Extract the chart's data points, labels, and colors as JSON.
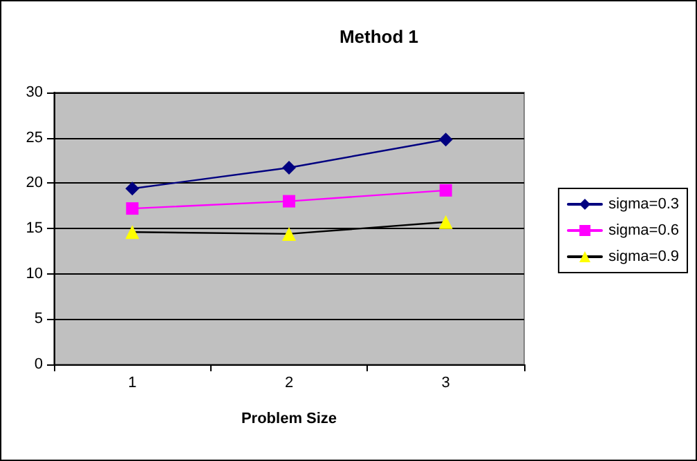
{
  "chart_data": {
    "type": "line",
    "title": "Method 1",
    "xlabel": "Problem Size",
    "categories": [
      "1",
      "2",
      "3"
    ],
    "series": [
      {
        "name": "sigma=0.3",
        "color": "#000080",
        "marker": "diamond",
        "values": [
          19.4,
          21.7,
          24.8
        ]
      },
      {
        "name": "sigma=0.6",
        "color": "#ff00ff",
        "marker": "square",
        "values": [
          17.2,
          18.0,
          19.2
        ]
      },
      {
        "name": "sigma=0.9",
        "color": "#000000",
        "colors": [
          "#ffff00",
          "#ffff00",
          "#ffff00"
        ],
        "marker": "triangle",
        "values": [
          14.6,
          14.4,
          15.7
        ]
      }
    ],
    "ylim": [
      0,
      30
    ],
    "yticks": [
      0,
      5,
      10,
      15,
      20,
      25,
      30
    ],
    "grid": "y",
    "legend": "right",
    "line_style": "solid"
  }
}
